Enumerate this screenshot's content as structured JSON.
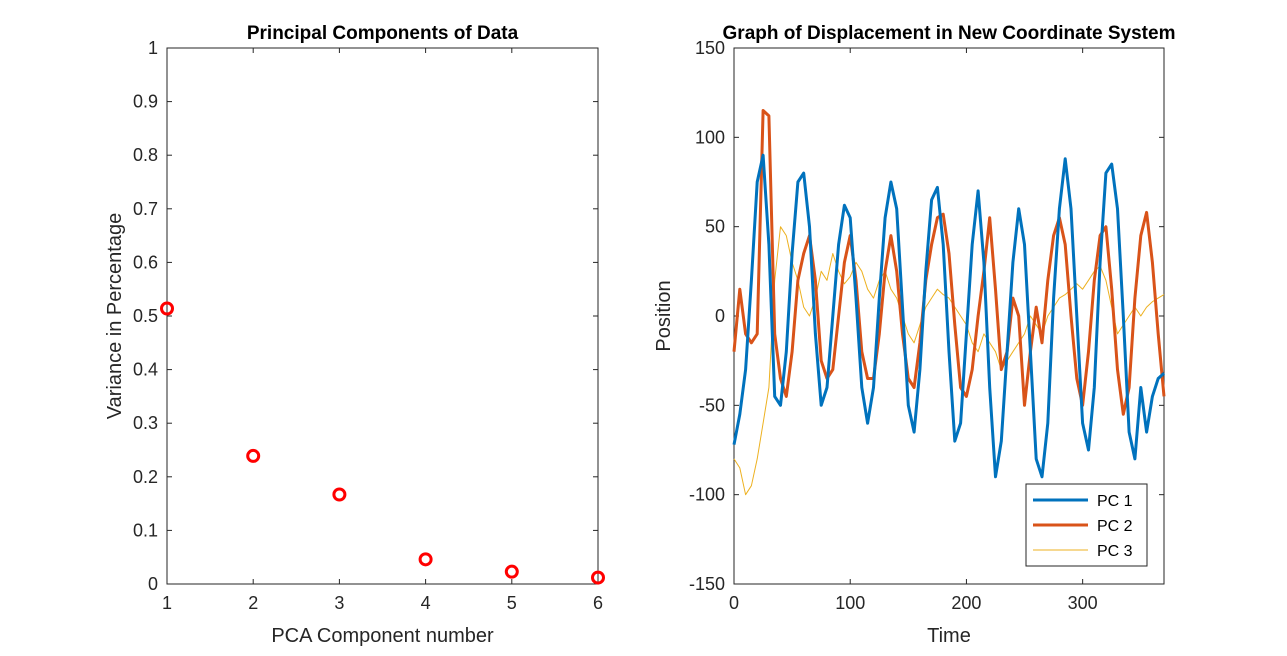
{
  "chart_data": [
    {
      "type": "scatter",
      "title": "Principal Components of Data",
      "xlabel": "PCA Component number",
      "ylabel": "Variance in Percentage",
      "xlim": [
        1,
        6
      ],
      "ylim": [
        0,
        1
      ],
      "xticks": [
        "1",
        "2",
        "3",
        "4",
        "5",
        "6"
      ],
      "yticks": [
        "0",
        "0.1",
        "0.2",
        "0.3",
        "0.4",
        "0.5",
        "0.6",
        "0.7",
        "0.8",
        "0.9",
        "1"
      ],
      "grid": false,
      "marker": "circle",
      "color": "#ff0000",
      "x": [
        1,
        2,
        3,
        4,
        5,
        6
      ],
      "y": [
        0.514,
        0.239,
        0.167,
        0.046,
        0.023,
        0.012
      ]
    },
    {
      "type": "line",
      "title": "Graph of Displacement in New Coordinate System",
      "xlabel": "Time",
      "ylabel": "Position",
      "xlim": [
        0,
        370
      ],
      "ylim": [
        -150,
        150
      ],
      "xticks": [
        "0",
        "100",
        "200",
        "300"
      ],
      "yticks": [
        "-150",
        "-100",
        "-50",
        "0",
        "50",
        "100",
        "150"
      ],
      "grid": false,
      "legend_position": "bottom-right",
      "series": [
        {
          "name": "PC 1",
          "color": "#0072bd",
          "line_width": "thick",
          "x": [
            0,
            5,
            10,
            15,
            20,
            25,
            30,
            35,
            40,
            45,
            50,
            55,
            60,
            65,
            70,
            75,
            80,
            85,
            90,
            95,
            100,
            105,
            110,
            115,
            120,
            125,
            130,
            135,
            140,
            145,
            150,
            155,
            160,
            165,
            170,
            175,
            180,
            185,
            190,
            195,
            200,
            205,
            210,
            215,
            220,
            225,
            230,
            235,
            240,
            245,
            250,
            255,
            260,
            265,
            270,
            275,
            280,
            285,
            290,
            295,
            300,
            305,
            310,
            315,
            320,
            325,
            330,
            335,
            340,
            345,
            350,
            355,
            360,
            365,
            370
          ],
          "y": [
            -72,
            -55,
            -30,
            20,
            75,
            90,
            40,
            -45,
            -50,
            -20,
            35,
            75,
            80,
            50,
            -10,
            -50,
            -40,
            0,
            40,
            62,
            55,
            10,
            -40,
            -60,
            -40,
            10,
            55,
            75,
            60,
            5,
            -50,
            -65,
            -30,
            25,
            65,
            72,
            40,
            -20,
            -70,
            -60,
            -10,
            40,
            70,
            30,
            -40,
            -90,
            -70,
            -20,
            30,
            60,
            40,
            -20,
            -80,
            -90,
            -60,
            10,
            60,
            88,
            60,
            0,
            -60,
            -75,
            -40,
            30,
            80,
            85,
            60,
            0,
            -65,
            -80,
            -40,
            -65,
            -45,
            -35,
            -32
          ]
        },
        {
          "name": "PC 2",
          "color": "#d95319",
          "line_width": "thick",
          "x": [
            0,
            5,
            10,
            15,
            20,
            25,
            30,
            35,
            40,
            45,
            50,
            55,
            60,
            65,
            70,
            75,
            80,
            85,
            90,
            95,
            100,
            105,
            110,
            115,
            120,
            125,
            130,
            135,
            140,
            145,
            150,
            155,
            160,
            165,
            170,
            175,
            180,
            185,
            190,
            195,
            200,
            205,
            210,
            215,
            220,
            225,
            230,
            235,
            240,
            245,
            250,
            255,
            260,
            265,
            270,
            275,
            280,
            285,
            290,
            295,
            300,
            305,
            310,
            315,
            320,
            325,
            330,
            335,
            340,
            345,
            350,
            355,
            360,
            365,
            370
          ],
          "y": [
            -20,
            15,
            -10,
            -15,
            -10,
            115,
            112,
            -10,
            -35,
            -45,
            -20,
            20,
            35,
            45,
            20,
            -25,
            -35,
            -30,
            0,
            30,
            45,
            20,
            -20,
            -35,
            -35,
            -10,
            25,
            45,
            25,
            -10,
            -35,
            -40,
            -15,
            20,
            40,
            55,
            57,
            35,
            -5,
            -40,
            -45,
            -30,
            0,
            25,
            55,
            15,
            -30,
            -20,
            10,
            0,
            -50,
            -20,
            5,
            -15,
            20,
            45,
            55,
            40,
            0,
            -35,
            -50,
            -20,
            20,
            45,
            50,
            15,
            -30,
            -55,
            -40,
            10,
            45,
            58,
            30,
            -10,
            -45
          ]
        },
        {
          "name": "PC 3",
          "color": "#edb120",
          "line_width": "thin",
          "x": [
            0,
            5,
            10,
            15,
            20,
            25,
            30,
            35,
            40,
            45,
            50,
            55,
            60,
            65,
            70,
            75,
            80,
            85,
            90,
            95,
            100,
            105,
            110,
            115,
            120,
            125,
            130,
            135,
            140,
            145,
            150,
            155,
            160,
            165,
            170,
            175,
            180,
            185,
            190,
            195,
            200,
            205,
            210,
            215,
            220,
            225,
            230,
            235,
            240,
            245,
            250,
            255,
            260,
            265,
            270,
            275,
            280,
            285,
            290,
            295,
            300,
            305,
            310,
            315,
            320,
            325,
            330,
            335,
            340,
            345,
            350,
            355,
            360,
            365,
            370
          ],
          "y": [
            -80,
            -85,
            -100,
            -95,
            -80,
            -60,
            -40,
            20,
            50,
            45,
            30,
            20,
            5,
            0,
            10,
            25,
            20,
            35,
            25,
            18,
            22,
            30,
            25,
            15,
            10,
            20,
            25,
            15,
            10,
            0,
            -10,
            -15,
            -5,
            5,
            10,
            15,
            12,
            10,
            5,
            0,
            -5,
            -15,
            -20,
            -10,
            -15,
            -20,
            -30,
            -25,
            -20,
            -15,
            -10,
            0,
            -5,
            -10,
            0,
            5,
            10,
            12,
            15,
            18,
            15,
            20,
            25,
            28,
            20,
            5,
            -10,
            -5,
            0,
            5,
            0,
            5,
            8,
            10,
            12
          ]
        }
      ]
    }
  ]
}
